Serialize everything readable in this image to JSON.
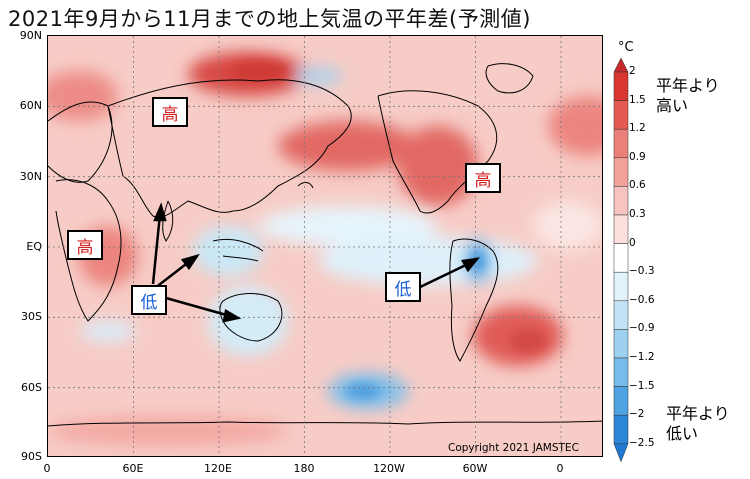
{
  "title": "2021年9月から11月までの地上気温の平年差(予測値)",
  "map": {
    "lat_labels": [
      "90N",
      "60N",
      "30N",
      "EQ",
      "30S",
      "60S",
      "90S"
    ],
    "lon_labels": [
      "0",
      "60E",
      "120E",
      "180",
      "120W",
      "60W",
      "0"
    ],
    "copyright": "Copyright  2021  JAMSTEC",
    "annotations": [
      {
        "text": "高",
        "kind": "high",
        "where": "Siberia"
      },
      {
        "text": "高",
        "kind": "high",
        "where": "North America"
      },
      {
        "text": "高",
        "kind": "high",
        "where": "Africa"
      },
      {
        "text": "低",
        "kind": "low",
        "where": "Maritime Continent / India / Australia"
      },
      {
        "text": "低",
        "kind": "low",
        "where": "South America"
      }
    ]
  },
  "colorbar": {
    "unit": "°C",
    "ticks": [
      "2",
      "1.5",
      "1.2",
      "0.9",
      "0.6",
      "0.3",
      "0",
      "−0.3",
      "−0.6",
      "−0.9",
      "−1.2",
      "−1.5",
      "−2",
      "−2.5"
    ],
    "colors": [
      "#d9362f",
      "#e45a52",
      "#ec7f78",
      "#f2a29b",
      "#f7c3be",
      "#fbe0dd",
      "#ffffff",
      "#e2f2fb",
      "#c1e3f5",
      "#9dd1ef",
      "#76bcea",
      "#4fa3e3",
      "#2e86d8"
    ],
    "top_label": [
      "平年より",
      "高い"
    ],
    "bottom_label": [
      "平年より",
      "低い"
    ]
  }
}
